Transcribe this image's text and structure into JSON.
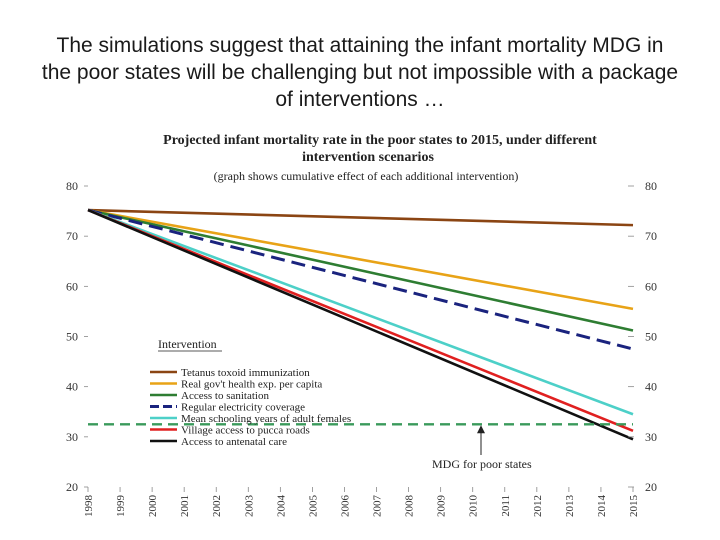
{
  "slide": {
    "title": "The simulations suggest that attaining the infant mortality MDG in the poor states will be challenging but not impossible with a package of interventions …"
  },
  "chart_data": {
    "type": "line",
    "title_line1": "Projected infant mortality rate in the poor states to 2015, under different",
    "title_line2": "intervention scenarios",
    "subtitle": "(graph shows cumulative effect of each additional intervention)",
    "xlabel": "",
    "ylabel": "",
    "x": [
      "1998",
      "1999",
      "2000",
      "2001",
      "2002",
      "2003",
      "2004",
      "2005",
      "2006",
      "2007",
      "2008",
      "2009",
      "2010",
      "2011",
      "2012",
      "2013",
      "2014",
      "2015"
    ],
    "xlim": [
      1998,
      2015
    ],
    "ylim": [
      20,
      80
    ],
    "yticks": [
      20,
      30,
      40,
      50,
      60,
      70,
      80
    ],
    "legend_title": "Intervention",
    "legend_position": "lower-left",
    "series": [
      {
        "name": "Tetanus toxoid immunization",
        "color": "#8B4513",
        "dash": false,
        "start": 75.2,
        "end": 72.2
      },
      {
        "name": "Real gov't health exp. per capita",
        "color": "#E8A317",
        "dash": false,
        "start": 75.2,
        "end": 55.5
      },
      {
        "name": "Access to sanitation",
        "color": "#2E7D32",
        "dash": false,
        "start": 75.2,
        "end": 51.2
      },
      {
        "name": "Regular electricity coverage",
        "color": "#1A237E",
        "dash": true,
        "start": 75.2,
        "end": 47.5
      },
      {
        "name": "Mean schooling years of adult females",
        "color": "#4DD0C8",
        "dash": false,
        "start": 75.2,
        "end": 34.5
      },
      {
        "name": "Village access to pucca roads",
        "color": "#E02020",
        "dash": false,
        "start": 75.2,
        "end": 31.2
      },
      {
        "name": "Access to antenatal care",
        "color": "#111111",
        "dash": false,
        "start": 75.2,
        "end": 29.5
      }
    ],
    "reference_line": {
      "label": "MDG for poor states",
      "value": 32.5,
      "color": "#3A9A5B"
    }
  }
}
